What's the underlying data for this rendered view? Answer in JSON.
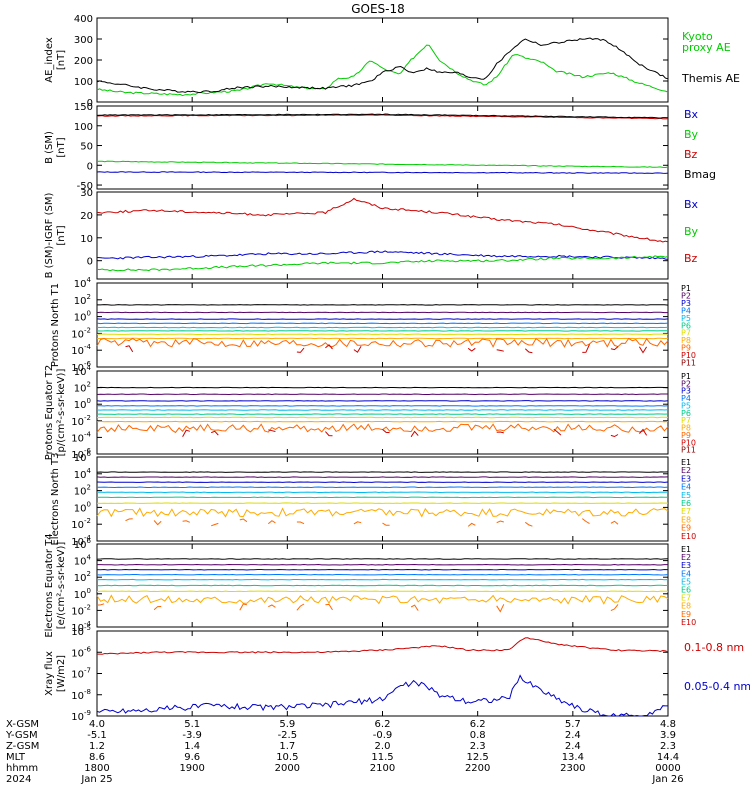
{
  "title": "GOES-18",
  "colors": {
    "black": "#000000",
    "blue": "#0000cc",
    "green": "#00cc00",
    "red": "#cc0000",
    "channel_palette": [
      "#000000",
      "#550066",
      "#0000cc",
      "#0077ff",
      "#00bbee",
      "#00cc88",
      "#dddd00",
      "#ffaa00",
      "#ff6600",
      "#cc0000",
      "#880000"
    ]
  },
  "chart_data": [
    {
      "type": "line",
      "id": "ae",
      "ylabel": "AE_index [nT]",
      "ylim": [
        0,
        400
      ],
      "ticks": [
        "400",
        "300",
        "200",
        "100",
        "0"
      ],
      "tick_values": [
        400,
        300,
        200,
        100,
        0
      ],
      "series": [
        {
          "name": "Kyoto proxy AE",
          "color": "#00cc00",
          "x": [
            0,
            0.05,
            0.1,
            0.15,
            0.2,
            0.25,
            0.3,
            0.35,
            0.4,
            0.42,
            0.45,
            0.48,
            0.5,
            0.53,
            0.55,
            0.58,
            0.6,
            0.63,
            0.65,
            0.68,
            0.7,
            0.73,
            0.75,
            0.78,
            0.8,
            0.85,
            0.9,
            0.95,
            1
          ],
          "y": [
            60,
            45,
            40,
            35,
            45,
            55,
            90,
            70,
            60,
            110,
            120,
            200,
            160,
            130,
            200,
            280,
            200,
            140,
            110,
            80,
            120,
            230,
            210,
            190,
            150,
            120,
            140,
            90,
            50
          ]
        },
        {
          "name": "Themis AE",
          "color": "#000000",
          "x": [
            0,
            0.05,
            0.1,
            0.15,
            0.2,
            0.25,
            0.3,
            0.35,
            0.4,
            0.45,
            0.48,
            0.5,
            0.53,
            0.55,
            0.58,
            0.6,
            0.63,
            0.65,
            0.68,
            0.7,
            0.73,
            0.75,
            0.78,
            0.8,
            0.85,
            0.88,
            0.9,
            0.95,
            1
          ],
          "y": [
            100,
            80,
            60,
            50,
            50,
            70,
            75,
            70,
            65,
            80,
            100,
            140,
            170,
            140,
            160,
            140,
            140,
            120,
            110,
            180,
            260,
            300,
            270,
            280,
            300,
            300,
            280,
            180,
            110
          ]
        }
      ],
      "legend": [
        "Kyoto proxy AE",
        "Themis AE"
      ]
    },
    {
      "type": "line",
      "id": "bsm",
      "ylabel": "B (SM) [nT]",
      "ylim": [
        -60,
        150
      ],
      "ticks": [
        "150",
        "100",
        "50",
        "0",
        "-50"
      ],
      "tick_values": [
        150,
        100,
        50,
        0,
        -50
      ],
      "series": [
        {
          "name": "Bx",
          "color": "#0000cc",
          "x": [
            0,
            0.5,
            1
          ],
          "y": [
            -17,
            -18,
            -20
          ]
        },
        {
          "name": "By",
          "color": "#00cc00",
          "x": [
            0,
            0.5,
            1
          ],
          "y": [
            10,
            3,
            -5
          ]
        },
        {
          "name": "Bz",
          "color": "#cc0000",
          "x": [
            0,
            0.5,
            1
          ],
          "y": [
            125,
            127,
            118
          ]
        },
        {
          "name": "Bmag",
          "color": "#000000",
          "x": [
            0,
            0.5,
            1
          ],
          "y": [
            127,
            129,
            120
          ]
        }
      ],
      "legend": [
        "Bx",
        "By",
        "Bz",
        "Bmag"
      ]
    },
    {
      "type": "line",
      "id": "bdiff",
      "ylabel": "B (SM)-IGRF (SM) [nT]",
      "ylim": [
        -8,
        30
      ],
      "ticks": [
        "30",
        "20",
        "10",
        "0"
      ],
      "tick_values": [
        30,
        20,
        10,
        0
      ],
      "series": [
        {
          "name": "Bx",
          "color": "#0000cc",
          "x": [
            0,
            0.1,
            0.2,
            0.3,
            0.4,
            0.5,
            0.6,
            0.7,
            0.8,
            0.9,
            1
          ],
          "y": [
            1,
            1.5,
            2,
            3,
            3,
            4,
            3,
            2,
            2,
            1.5,
            1
          ]
        },
        {
          "name": "By",
          "color": "#00cc00",
          "x": [
            0,
            0.1,
            0.2,
            0.3,
            0.4,
            0.5,
            0.6,
            0.7,
            0.8,
            0.9,
            1
          ],
          "y": [
            -4,
            -4,
            -3,
            -2,
            -1,
            -1,
            0,
            0,
            1,
            1,
            2
          ]
        },
        {
          "name": "Bz",
          "color": "#cc0000",
          "x": [
            0,
            0.1,
            0.2,
            0.3,
            0.4,
            0.45,
            0.5,
            0.6,
            0.7,
            0.8,
            0.9,
            1
          ],
          "y": [
            21,
            22,
            21,
            20,
            21,
            27,
            23,
            21,
            18,
            16,
            12,
            8
          ]
        }
      ],
      "legend": [
        "Bx",
        "By",
        "Bz"
      ]
    },
    {
      "type": "line",
      "id": "p1",
      "ylabel": "Protons North T1",
      "log": true,
      "ylim_exp": [
        -6,
        4
      ],
      "tick_exps": [
        4,
        2,
        0,
        -2,
        -4,
        -6
      ],
      "channels": [
        "P1",
        "P2",
        "P3",
        "P4",
        "P5",
        "P6",
        "P7",
        "P8",
        "P9",
        "P10",
        "P11"
      ],
      "levels_exp": [
        1.4,
        0.5,
        -0.3,
        -0.8,
        -1.3,
        -1.7,
        -2.1,
        -2.6,
        -3.1,
        -3.8,
        -4.3
      ]
    },
    {
      "type": "line",
      "id": "p2",
      "ylabel": "Protons Equator T2 [p/(cm²-s-sr-keV)]",
      "log": true,
      "ylim_exp": [
        -6,
        4
      ],
      "tick_exps": [
        4,
        2,
        0,
        -2,
        -4,
        -6
      ],
      "channels": [
        "P1",
        "P2",
        "P3",
        "P4",
        "P5",
        "P6",
        "P7",
        "P8",
        "P9",
        "P10",
        "P11"
      ],
      "levels_exp": [
        2.0,
        1.2,
        0.4,
        -0.2,
        -0.7,
        -1.2,
        -1.6,
        -2.1,
        -2.9,
        -3.5,
        -4.0
      ]
    },
    {
      "type": "line",
      "id": "e1",
      "ylabel": "Electrons North T3",
      "log": true,
      "ylim_exp": [
        -4,
        6
      ],
      "tick_exps": [
        6,
        4,
        2,
        0,
        -2,
        -4
      ],
      "channels": [
        "E1",
        "E2",
        "E3",
        "E4",
        "E5",
        "E6",
        "E7",
        "E8",
        "E9",
        "E10"
      ],
      "levels_exp": [
        4.2,
        3.6,
        3.0,
        2.4,
        1.8,
        1.2,
        0.5,
        -0.6,
        -1.8,
        -2.5
      ]
    },
    {
      "type": "line",
      "id": "e2",
      "ylabel": "Electrons Equator T4 [e/(cm²-s-sr-keV)]",
      "log": true,
      "ylim_exp": [
        -4,
        6
      ],
      "tick_exps": [
        6,
        4,
        2,
        0,
        -2,
        -4
      ],
      "channels": [
        "E1",
        "E2",
        "E3",
        "E4",
        "E5",
        "E6",
        "E7",
        "E8",
        "E9",
        "E10"
      ],
      "levels_exp": [
        4.2,
        3.5,
        2.9,
        2.3,
        1.7,
        1.0,
        0.3,
        -0.7,
        -1.7,
        -2.4
      ]
    },
    {
      "type": "line",
      "id": "xray",
      "ylabel": "Xray flux [W/m2]",
      "log": true,
      "ylim_exp": [
        -9,
        -5
      ],
      "tick_exps": [
        -5,
        -6,
        -7,
        -8,
        -9
      ],
      "series": [
        {
          "name": "0.1-0.8 nm",
          "color": "#cc0000",
          "x": [
            0,
            0.1,
            0.2,
            0.3,
            0.4,
            0.5,
            0.55,
            0.6,
            0.65,
            0.72,
            0.75,
            0.8,
            0.9,
            1
          ],
          "y": [
            -6.1,
            -6.0,
            -6.0,
            -6.0,
            -6.0,
            -5.9,
            -5.8,
            -5.7,
            -5.9,
            -5.9,
            -5.3,
            -5.6,
            -5.9,
            -5.95
          ]
        },
        {
          "name": "0.05-0.4 nm",
          "color": "#0000cc",
          "x": [
            0,
            0.1,
            0.2,
            0.3,
            0.4,
            0.5,
            0.53,
            0.56,
            0.6,
            0.65,
            0.72,
            0.74,
            0.76,
            0.8,
            0.85,
            0.9,
            0.95,
            1
          ],
          "y": [
            -8.8,
            -8.7,
            -8.5,
            -8.6,
            -8.5,
            -8.2,
            -7.6,
            -7.4,
            -8.0,
            -8.3,
            -8.2,
            -7.2,
            -7.5,
            -8.1,
            -8.7,
            -9.0,
            -9.0,
            -8.5
          ]
        }
      ],
      "legend": [
        "0.1-0.8 nm",
        "0.05-0.4 nm"
      ]
    }
  ],
  "ephemeris": {
    "row_labels": [
      "X-GSM",
      "Y-GSM",
      "Z-GSM",
      "MLT",
      "hhmm",
      "2024"
    ],
    "columns": [
      {
        "vals": [
          "4.0",
          "-5.1",
          "1.2",
          "8.6",
          "1800",
          "Jan 25"
        ]
      },
      {
        "vals": [
          "5.1",
          "-3.9",
          "1.4",
          "9.6",
          "1900",
          ""
        ]
      },
      {
        "vals": [
          "5.9",
          "-2.5",
          "1.7",
          "10.5",
          "2000",
          ""
        ]
      },
      {
        "vals": [
          "6.2",
          "-0.9",
          "2.0",
          "11.5",
          "2100",
          ""
        ]
      },
      {
        "vals": [
          "6.2",
          "0.8",
          "2.3",
          "12.5",
          "2200",
          ""
        ]
      },
      {
        "vals": [
          "5.7",
          "2.4",
          "2.4",
          "13.4",
          "2300",
          ""
        ]
      },
      {
        "vals": [
          "4.8",
          "3.9",
          "2.3",
          "14.4",
          "0000",
          "Jan 26"
        ]
      }
    ]
  }
}
